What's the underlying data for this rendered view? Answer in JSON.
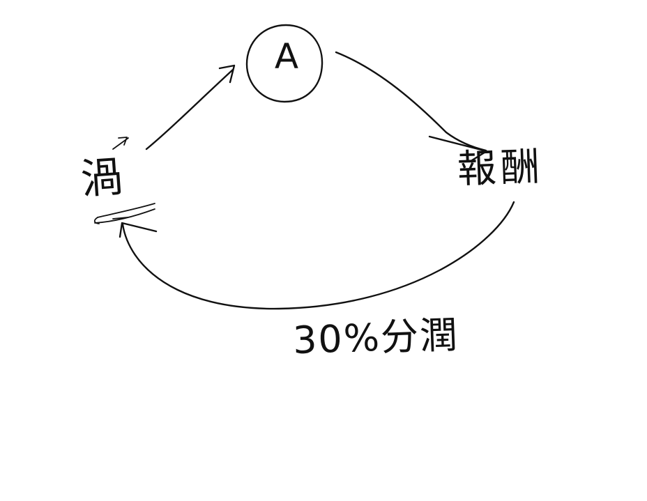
{
  "diagram": {
    "nodes": {
      "left": {
        "label": "渦"
      },
      "center": {
        "label": "A"
      },
      "right": {
        "label": "報酬"
      }
    },
    "edges": [
      {
        "from": "left",
        "to": "center",
        "label": ""
      },
      {
        "from": "center",
        "to": "right",
        "label": ""
      },
      {
        "from": "right",
        "to": "left",
        "label": "30%分潤"
      }
    ],
    "colors": {
      "ink": "#111111",
      "background": "#ffffff"
    }
  }
}
